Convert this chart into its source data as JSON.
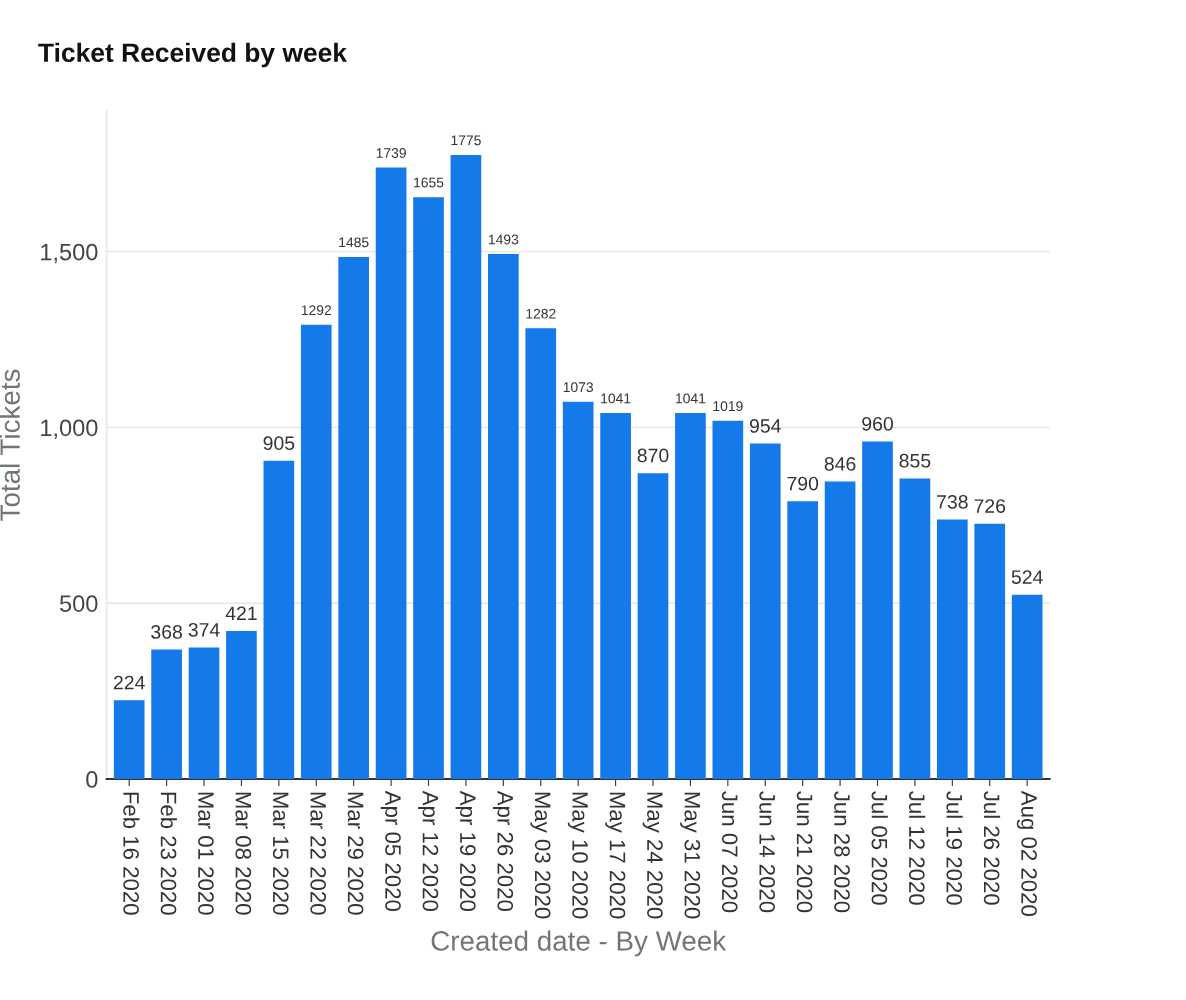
{
  "chart_data": {
    "type": "bar",
    "title": "Ticket Received by week",
    "xlabel": "Created date - By Week",
    "ylabel": "Total Tickets",
    "categories": [
      "Feb 16 2020",
      "Feb 23 2020",
      "Mar 01 2020",
      "Mar 08 2020",
      "Mar 15 2020",
      "Mar 22 2020",
      "Mar 29 2020",
      "Apr 05 2020",
      "Apr 12 2020",
      "Apr 19 2020",
      "Apr 26 2020",
      "May 03 2020",
      "May 10 2020",
      "May 17 2020",
      "May 24 2020",
      "May 31 2020",
      "Jun 07 2020",
      "Jun 14 2020",
      "Jun 21 2020",
      "Jun 28 2020",
      "Jul 05 2020",
      "Jul 12 2020",
      "Jul 19 2020",
      "Jul 26 2020",
      "Aug 02 2020"
    ],
    "values": [
      224,
      368,
      374,
      421,
      905,
      1292,
      1485,
      1739,
      1655,
      1775,
      1493,
      1282,
      1073,
      1041,
      870,
      1041,
      1019,
      954,
      790,
      846,
      960,
      855,
      738,
      726,
      524
    ],
    "color": "#1479e9",
    "ylim": [
      0,
      1900
    ],
    "yticks": [
      0,
      500,
      {
        "value": 1000,
        "label": "1,000"
      },
      {
        "value": 1500,
        "label": "1,500"
      }
    ],
    "grid": "y",
    "data_labels": true,
    "legend": false
  }
}
